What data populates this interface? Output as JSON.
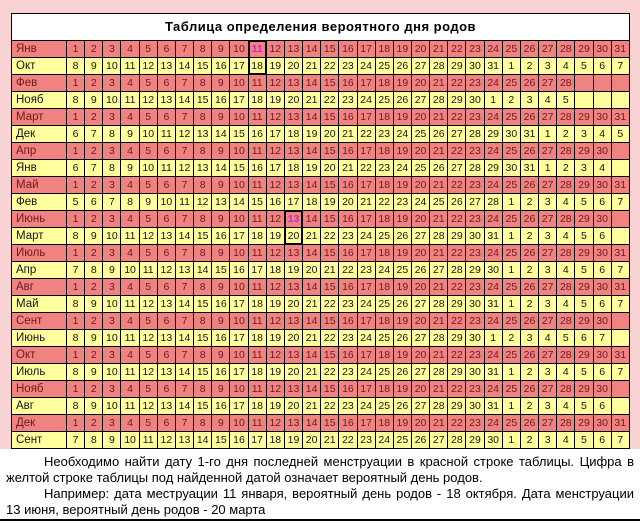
{
  "title": "Таблица определения вероятного дня родов",
  "colors": {
    "page_margin_pink": "#F9D3D3",
    "red_row_bg": "#F08282",
    "red_row_text": "#6E1A1A",
    "yellow_row_bg": "#FFFF9E",
    "yellow_row_text": "#141414",
    "highlight_magenta": "#C22CC2",
    "grid": "#000000",
    "title_bg": "#FFFFFF"
  },
  "table": {
    "rows": [
      {
        "month": "Янв",
        "style": "red",
        "days": [
          1,
          2,
          3,
          4,
          5,
          6,
          7,
          8,
          9,
          10,
          11,
          12,
          13,
          14,
          15,
          16,
          17,
          18,
          19,
          20,
          21,
          22,
          23,
          24,
          25,
          26,
          27,
          28,
          29,
          30,
          31
        ],
        "highlight": {
          "index": 10,
          "magenta": true,
          "box": "top"
        }
      },
      {
        "month": "Окт",
        "style": "yellow",
        "days": [
          8,
          9,
          10,
          11,
          12,
          13,
          14,
          15,
          16,
          17,
          18,
          19,
          20,
          21,
          22,
          23,
          24,
          25,
          26,
          27,
          28,
          29,
          30,
          31,
          1,
          2,
          3,
          4,
          5,
          6,
          7
        ],
        "highlight": {
          "index": 10,
          "magenta": false,
          "box": "bottom"
        }
      },
      {
        "month": "Фев",
        "style": "red",
        "days": [
          1,
          2,
          3,
          4,
          5,
          6,
          7,
          8,
          9,
          10,
          11,
          12,
          13,
          14,
          15,
          16,
          17,
          18,
          19,
          20,
          21,
          22,
          23,
          24,
          25,
          26,
          27,
          28,
          "",
          "",
          ""
        ]
      },
      {
        "month": "Нояб",
        "style": "yellow",
        "days": [
          8,
          9,
          10,
          11,
          12,
          13,
          14,
          15,
          16,
          17,
          18,
          19,
          20,
          21,
          22,
          23,
          24,
          25,
          26,
          27,
          28,
          29,
          30,
          1,
          2,
          3,
          4,
          5,
          "",
          "",
          ""
        ]
      },
      {
        "month": "Март",
        "style": "red",
        "days": [
          1,
          2,
          3,
          4,
          5,
          6,
          7,
          8,
          9,
          10,
          11,
          12,
          13,
          14,
          15,
          16,
          17,
          18,
          19,
          20,
          21,
          22,
          23,
          24,
          25,
          26,
          27,
          28,
          29,
          30,
          31
        ]
      },
      {
        "month": "Дек",
        "style": "yellow",
        "days": [
          6,
          7,
          8,
          9,
          10,
          11,
          12,
          13,
          14,
          15,
          16,
          17,
          18,
          19,
          20,
          21,
          22,
          23,
          24,
          25,
          26,
          27,
          28,
          29,
          30,
          31,
          1,
          2,
          3,
          4,
          5
        ]
      },
      {
        "month": "Апр",
        "style": "red",
        "days": [
          1,
          2,
          3,
          4,
          5,
          6,
          7,
          8,
          9,
          10,
          11,
          12,
          13,
          14,
          15,
          16,
          17,
          18,
          19,
          20,
          21,
          22,
          23,
          24,
          25,
          26,
          27,
          28,
          29,
          30,
          ""
        ]
      },
      {
        "month": "Янв",
        "style": "yellow",
        "days": [
          6,
          7,
          8,
          9,
          10,
          11,
          12,
          13,
          14,
          15,
          16,
          17,
          18,
          19,
          20,
          21,
          22,
          23,
          24,
          25,
          26,
          27,
          28,
          29,
          30,
          31,
          1,
          2,
          3,
          4,
          ""
        ]
      },
      {
        "month": "Май",
        "style": "red",
        "days": [
          1,
          2,
          3,
          4,
          5,
          6,
          7,
          8,
          9,
          10,
          11,
          12,
          13,
          14,
          15,
          16,
          17,
          18,
          19,
          20,
          21,
          22,
          23,
          24,
          25,
          26,
          27,
          28,
          29,
          30,
          31
        ]
      },
      {
        "month": "Фев",
        "style": "yellow",
        "days": [
          5,
          6,
          7,
          8,
          9,
          10,
          11,
          12,
          13,
          14,
          15,
          16,
          17,
          18,
          19,
          20,
          21,
          22,
          23,
          24,
          25,
          26,
          27,
          28,
          1,
          2,
          3,
          4,
          5,
          6,
          7
        ]
      },
      {
        "month": "Июнь",
        "style": "red",
        "days": [
          1,
          2,
          3,
          4,
          5,
          6,
          7,
          8,
          9,
          10,
          11,
          12,
          13,
          14,
          15,
          16,
          17,
          18,
          19,
          20,
          21,
          22,
          23,
          24,
          25,
          26,
          27,
          28,
          29,
          30,
          ""
        ],
        "highlight": {
          "index": 12,
          "magenta": true,
          "box": "top"
        }
      },
      {
        "month": "Март",
        "style": "yellow",
        "days": [
          8,
          9,
          10,
          11,
          12,
          13,
          14,
          15,
          16,
          17,
          18,
          19,
          20,
          21,
          22,
          23,
          24,
          25,
          26,
          27,
          28,
          29,
          30,
          31,
          1,
          2,
          3,
          4,
          5,
          6,
          ""
        ],
        "highlight": {
          "index": 12,
          "magenta": false,
          "box": "bottom"
        }
      },
      {
        "month": "Июль",
        "style": "red",
        "days": [
          1,
          2,
          3,
          4,
          5,
          6,
          7,
          8,
          9,
          10,
          11,
          12,
          13,
          14,
          15,
          16,
          17,
          18,
          19,
          20,
          21,
          22,
          23,
          24,
          25,
          26,
          27,
          28,
          29,
          30,
          31
        ]
      },
      {
        "month": "Апр",
        "style": "yellow",
        "days": [
          7,
          8,
          9,
          10,
          11,
          12,
          13,
          14,
          15,
          16,
          17,
          18,
          19,
          20,
          21,
          22,
          23,
          24,
          25,
          26,
          27,
          28,
          29,
          30,
          1,
          2,
          3,
          4,
          5,
          6,
          7
        ]
      },
      {
        "month": "Авг",
        "style": "red",
        "days": [
          1,
          2,
          3,
          4,
          5,
          6,
          7,
          8,
          9,
          10,
          11,
          12,
          13,
          14,
          15,
          16,
          17,
          18,
          19,
          20,
          21,
          22,
          23,
          24,
          25,
          26,
          27,
          28,
          29,
          30,
          31
        ]
      },
      {
        "month": "Май",
        "style": "yellow",
        "days": [
          8,
          9,
          10,
          11,
          12,
          13,
          14,
          15,
          16,
          17,
          18,
          19,
          20,
          21,
          22,
          23,
          24,
          25,
          26,
          27,
          28,
          29,
          30,
          31,
          1,
          2,
          3,
          4,
          5,
          6,
          7
        ]
      },
      {
        "month": "Сент",
        "style": "red",
        "days": [
          1,
          2,
          3,
          4,
          5,
          6,
          7,
          8,
          9,
          10,
          11,
          12,
          13,
          14,
          15,
          16,
          17,
          18,
          19,
          20,
          21,
          22,
          23,
          24,
          25,
          26,
          27,
          28,
          29,
          30,
          ""
        ]
      },
      {
        "month": "Июнь",
        "style": "yellow",
        "days": [
          8,
          9,
          10,
          11,
          12,
          13,
          14,
          15,
          16,
          17,
          18,
          19,
          20,
          21,
          22,
          23,
          24,
          25,
          26,
          27,
          28,
          29,
          30,
          1,
          2,
          3,
          4,
          5,
          6,
          7,
          ""
        ]
      },
      {
        "month": "Окт",
        "style": "red",
        "days": [
          1,
          2,
          3,
          4,
          5,
          6,
          7,
          8,
          9,
          10,
          11,
          12,
          13,
          14,
          15,
          16,
          17,
          18,
          19,
          20,
          21,
          22,
          23,
          24,
          25,
          26,
          27,
          28,
          29,
          30,
          31
        ]
      },
      {
        "month": "Июль",
        "style": "yellow",
        "days": [
          8,
          9,
          10,
          11,
          12,
          13,
          14,
          15,
          16,
          17,
          18,
          19,
          20,
          21,
          22,
          23,
          24,
          25,
          26,
          27,
          28,
          29,
          30,
          31,
          1,
          2,
          3,
          4,
          5,
          6,
          7
        ]
      },
      {
        "month": "Нояб",
        "style": "red",
        "days": [
          1,
          2,
          3,
          4,
          5,
          6,
          7,
          8,
          9,
          10,
          11,
          12,
          13,
          14,
          15,
          16,
          17,
          18,
          19,
          20,
          21,
          22,
          23,
          24,
          25,
          26,
          27,
          28,
          29,
          30,
          ""
        ]
      },
      {
        "month": "Авг",
        "style": "yellow",
        "days": [
          8,
          9,
          10,
          11,
          12,
          13,
          14,
          15,
          16,
          17,
          18,
          19,
          20,
          21,
          22,
          23,
          24,
          25,
          26,
          27,
          28,
          29,
          30,
          31,
          1,
          2,
          3,
          4,
          5,
          6,
          ""
        ]
      },
      {
        "month": "Дек",
        "style": "red",
        "days": [
          1,
          2,
          3,
          4,
          5,
          6,
          7,
          8,
          9,
          10,
          11,
          12,
          13,
          14,
          15,
          16,
          17,
          18,
          19,
          20,
          21,
          22,
          23,
          24,
          25,
          26,
          27,
          28,
          29,
          30,
          31
        ]
      },
      {
        "month": "Сент",
        "style": "yellow",
        "days": [
          7,
          8,
          9,
          10,
          11,
          12,
          13,
          14,
          15,
          16,
          17,
          18,
          19,
          20,
          21,
          22,
          23,
          24,
          25,
          26,
          27,
          28,
          29,
          30,
          1,
          2,
          3,
          4,
          5,
          6,
          7
        ]
      }
    ]
  },
  "footer": {
    "note": "Необходимо найти дату 1-го дня последней менструации  в красной строке таблицы. Цифра в желтой строке таблицы под найденной датой означает вероятный день родов.",
    "example": "Например: дата меструации 11 января, вероятный день родов - 18 октября. Дата менструации 13 июня, вероятный день родов - 20 марта"
  }
}
